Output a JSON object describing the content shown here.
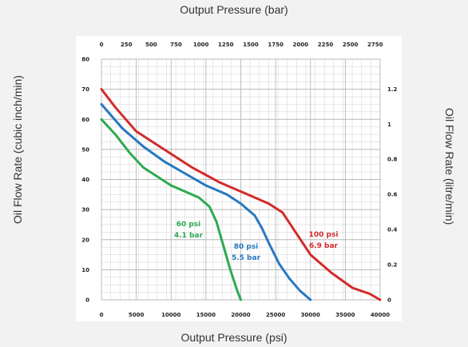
{
  "chart_data": {
    "type": "line",
    "x_bottom_label": "Output Pressure (psi)",
    "x_top_label": "Output Pressure (bar)",
    "y_left_label": "Oil Flow Rate (cubic inch/min)",
    "y_right_label": "Oil Flow Rate (litre/min)",
    "xlim": [
      0,
      40000
    ],
    "ylim": [
      0,
      80
    ],
    "x_bottom_ticks": [
      "0",
      "5000",
      "10000",
      "15000",
      "20000",
      "25000",
      "30000",
      "35000",
      "40000"
    ],
    "x_top_ticks": [
      "0",
      "250",
      "500",
      "750",
      "1000",
      "1250",
      "1500",
      "1750",
      "2000",
      "2250",
      "2500",
      "2750"
    ],
    "y_left_ticks": [
      "0",
      "10",
      "20",
      "30",
      "40",
      "50",
      "60",
      "70",
      "80"
    ],
    "y_right_ticks": [
      "0",
      "0.2",
      "0.4",
      "0.6",
      "0.8",
      "1",
      "1.2"
    ],
    "grid": true,
    "series": [
      {
        "line1": "60 psi",
        "line2": "4.1 bar",
        "color": "#2eaa52",
        "x": [
          0,
          2000,
          4000,
          6000,
          8000,
          10000,
          12000,
          14000,
          15500,
          16500,
          17500,
          18500,
          19500,
          20000
        ],
        "y": [
          60,
          55,
          49,
          44,
          41,
          38,
          36,
          34,
          31,
          26,
          18,
          10,
          3,
          0
        ]
      },
      {
        "line1": "80 psi",
        "line2": "5.5 bar",
        "color": "#2878c0",
        "x": [
          0,
          3000,
          6000,
          9000,
          12000,
          15000,
          18000,
          20000,
          22000,
          23000,
          24000,
          25500,
          27000,
          28500,
          30000
        ],
        "y": [
          65,
          57,
          51,
          46,
          42,
          38,
          35,
          32,
          28,
          24,
          19,
          12,
          7,
          3,
          0
        ]
      },
      {
        "line1": "100 psi",
        "line2": "6.9 bar",
        "color": "#d42a2a",
        "x": [
          0,
          2000,
          5000,
          9000,
          13000,
          17000,
          21000,
          24000,
          26000,
          28000,
          30000,
          33000,
          36000,
          38500,
          40000
        ],
        "y": [
          70,
          64,
          56,
          50,
          44,
          39,
          35,
          32,
          29,
          22,
          15,
          9,
          4,
          2,
          0
        ]
      }
    ]
  }
}
